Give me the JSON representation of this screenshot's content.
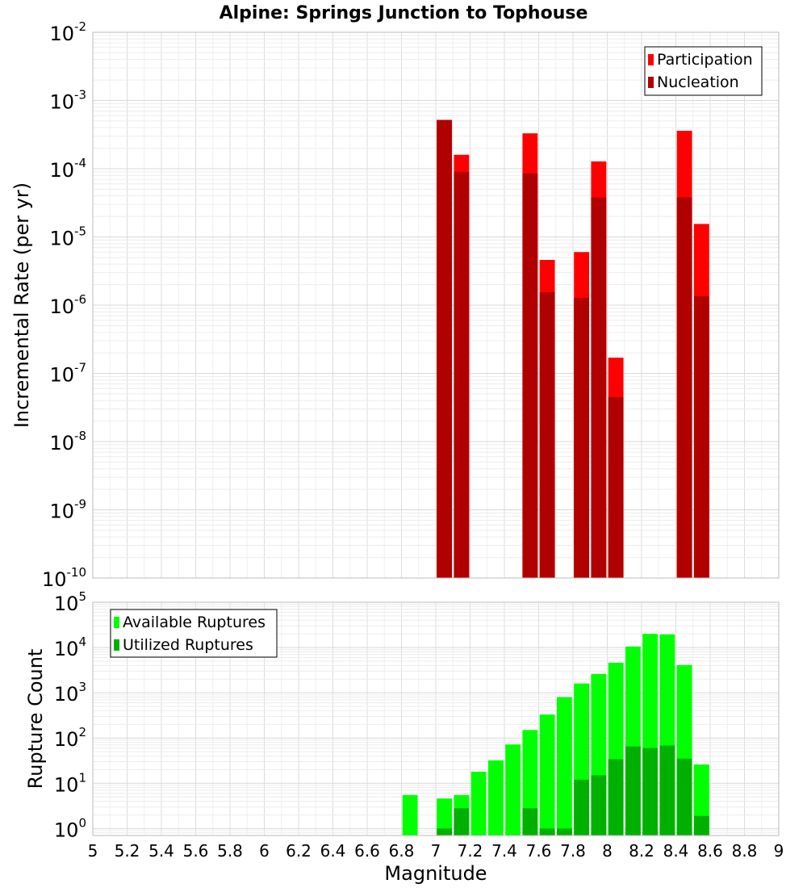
{
  "title": "Alpine: Springs Junction to Tophouse",
  "xlabel": "Magnitude",
  "x_ticks": [
    "5",
    "5.2",
    "5.4",
    "5.6",
    "5.8",
    "6",
    "6.2",
    "6.4",
    "6.6",
    "6.8",
    "7",
    "7.2",
    "7.4",
    "7.6",
    "7.8",
    "8",
    "8.2",
    "8.4",
    "8.6",
    "8.8",
    "9"
  ],
  "colors": {
    "participation": "#ff0000",
    "nucleation": "#b00000",
    "available": "#00ff00",
    "utilized": "#00b000",
    "grid": "#e4e4e4",
    "frame": "#bbbbbb"
  },
  "chart_data": [
    {
      "type": "bar",
      "name": "rate-chart",
      "ylabel": "Incremental Rate (per yr)",
      "yscale": "log",
      "xlim": [
        5,
        9
      ],
      "ylim": [
        1e-10,
        0.01
      ],
      "bin_width": 0.1,
      "y_tick_exponents": [
        -10,
        -9,
        -8,
        -7,
        -6,
        -5,
        -4,
        -3,
        -2
      ],
      "legend": {
        "placement": "top-right",
        "entries": [
          "Participation",
          "Nucleation"
        ]
      },
      "x": [
        7.05,
        7.15,
        7.55,
        7.65,
        7.85,
        7.95,
        8.05,
        8.45,
        8.55
      ],
      "series": [
        {
          "name": "Participation",
          "values": [
            0.00052,
            0.00016,
            0.00033,
            4.6e-06,
            6e-06,
            0.000128,
            1.7e-07,
            0.00036,
            1.55e-05
          ]
        },
        {
          "name": "Nucleation",
          "values": [
            0.00052,
            9e-05,
            8.5e-05,
            1.55e-06,
            1.28e-06,
            3.8e-05,
            4.5e-08,
            3.8e-05,
            1.35e-06
          ]
        }
      ]
    },
    {
      "type": "bar",
      "name": "count-chart",
      "ylabel": "Rupture Count",
      "yscale": "log",
      "xlim": [
        5,
        9
      ],
      "ylim": [
        0.7,
        100000.0
      ],
      "bin_width": 0.1,
      "y_tick_exponents": [
        0,
        1,
        2,
        3,
        4,
        5
      ],
      "legend": {
        "placement": "top-left",
        "entries": [
          "Available Ruptures",
          "Utilized Ruptures"
        ]
      },
      "x": [
        6.85,
        7.05,
        7.15,
        7.25,
        7.35,
        7.45,
        7.55,
        7.65,
        7.75,
        7.85,
        7.95,
        8.05,
        8.15,
        8.25,
        8.35,
        8.45,
        8.55
      ],
      "series": [
        {
          "name": "Available Ruptures",
          "values": [
            5.5,
            4.6,
            5.5,
            18,
            32,
            72,
            150,
            330,
            800,
            1600,
            2600,
            4600,
            10500,
            20000,
            19500,
            4100,
            26
          ]
        },
        {
          "name": "Utilized Ruptures",
          "values": [
            0,
            1,
            2.8,
            0,
            0,
            0,
            2.8,
            1,
            1,
            12,
            15,
            34,
            65,
            60,
            68,
            35,
            1.9
          ]
        }
      ]
    }
  ]
}
